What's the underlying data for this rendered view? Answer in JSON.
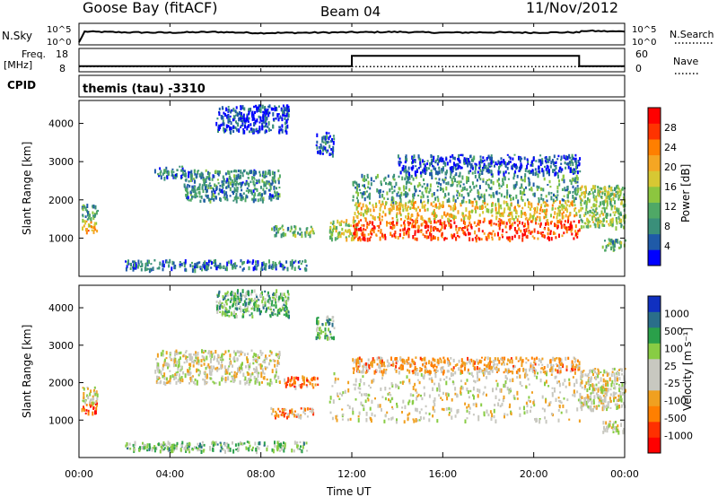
{
  "header": {
    "station": "Goose Bay (fitACF)",
    "beam": "Beam 04",
    "date": "11/Nov/2012"
  },
  "noise_panel": {
    "left_label": "N.Sky",
    "right_label": "N.Search",
    "left_ticks": [
      "10^5",
      "10^0"
    ],
    "right_ticks": [
      "10^5",
      "10^0"
    ]
  },
  "freq_panel": {
    "left_label_line1": "Freq.",
    "left_label_line2": "[MHz]",
    "right_label": "Nave",
    "left_ticks": [
      "18",
      "8"
    ],
    "right_ticks": [
      "60",
      "0"
    ]
  },
  "cpid": {
    "label": "CPID",
    "value": "themis (tau) -3310"
  },
  "x_axis": {
    "title": "Time UT",
    "tick_labels": [
      "00:00",
      "04:00",
      "08:00",
      "12:00",
      "16:00",
      "20:00",
      "00:00"
    ]
  },
  "chart_data": [
    {
      "type": "line",
      "panel": "noise",
      "series": [
        {
          "name": "N.Sky",
          "style": "solid",
          "x_hours": [
            0,
            0.25,
            2,
            4,
            6,
            8,
            10,
            12,
            14,
            16,
            18,
            20,
            22,
            22.2,
            24
          ],
          "y_log10": [
            0.2,
            3.2,
            3.0,
            2.9,
            3.1,
            2.8,
            2.9,
            3.0,
            3.1,
            2.9,
            3.0,
            2.9,
            3.0,
            3.4,
            3.2
          ]
        },
        {
          "name": "N.Search",
          "style": "dotted"
        }
      ]
    },
    {
      "type": "line",
      "panel": "frequency",
      "series": [
        {
          "name": "Freq.",
          "style": "solid",
          "x_hours": [
            0,
            12,
            12,
            22,
            22,
            24
          ],
          "y": [
            10.2,
            10.2,
            15.0,
            15.0,
            10.2,
            10.2
          ],
          "ylim": [
            8,
            18
          ]
        },
        {
          "name": "Nave",
          "style": "dotted",
          "x_hours": [
            0,
            24
          ],
          "y": [
            12,
            12
          ],
          "ylim": [
            0,
            60
          ]
        }
      ]
    },
    {
      "type": "heatmap",
      "panel": "power",
      "xlabel": "",
      "ylabel": "Slant Range [km]",
      "xlim_hours": [
        0,
        24
      ],
      "ylim_km": [
        0,
        4600
      ],
      "y_ticks": [
        1000,
        2000,
        3000,
        4000
      ],
      "colorbar": {
        "title": "Power [dB]",
        "tick_labels": [
          "4",
          "8",
          "12",
          "16",
          "20",
          "24",
          "28"
        ],
        "colors": [
          "#0000ff",
          "#1f5aa8",
          "#3a8f7a",
          "#4fa866",
          "#8cc63f",
          "#d7c833",
          "#f5a623",
          "#ff7f00",
          "#ff3300",
          "#ff0000"
        ]
      },
      "regions": [
        {
          "t0": 0.1,
          "t1": 0.8,
          "r0": 1200,
          "r1": 1500,
          "level": 0.65
        },
        {
          "t0": 0.1,
          "t1": 0.8,
          "r0": 1500,
          "r1": 1900,
          "level": 0.3
        },
        {
          "t0": 3.3,
          "t1": 4.6,
          "r0": 2600,
          "r1": 2900,
          "level": 0.2
        },
        {
          "t0": 4.6,
          "t1": 8.8,
          "r0": 2000,
          "r1": 2800,
          "level": 0.25
        },
        {
          "t0": 6.0,
          "t1": 9.2,
          "r0": 3800,
          "r1": 4500,
          "level": 0.1
        },
        {
          "t0": 8.4,
          "t1": 10.3,
          "r0": 1100,
          "r1": 1350,
          "level": 0.35
        },
        {
          "t0": 10.4,
          "t1": 11.2,
          "r0": 3200,
          "r1": 3800,
          "level": 0.15
        },
        {
          "t0": 11.0,
          "t1": 12.2,
          "r0": 1000,
          "r1": 1500,
          "level": 0.5
        },
        {
          "t0": 12.0,
          "t1": 22.0,
          "r0": 1000,
          "r1": 1500,
          "level": 0.85
        },
        {
          "t0": 12.0,
          "t1": 22.0,
          "r0": 1500,
          "r1": 2000,
          "level": 0.6
        },
        {
          "t0": 12.0,
          "t1": 22.0,
          "r0": 2000,
          "r1": 2700,
          "level": 0.3
        },
        {
          "t0": 14.0,
          "t1": 22.0,
          "r0": 2700,
          "r1": 3200,
          "level": 0.15
        },
        {
          "t0": 22.0,
          "t1": 24.0,
          "r0": 1300,
          "r1": 2400,
          "level": 0.45
        },
        {
          "t0": 23.0,
          "t1": 24.0,
          "r0": 700,
          "r1": 1000,
          "level": 0.35
        },
        {
          "t0": 2.0,
          "t1": 10.0,
          "r0": 200,
          "r1": 450,
          "level": 0.2
        }
      ]
    },
    {
      "type": "heatmap",
      "panel": "velocity",
      "xlabel": "Time UT",
      "ylabel": "Slant Range [km]",
      "xlim_hours": [
        0,
        24
      ],
      "ylim_km": [
        0,
        4600
      ],
      "y_ticks": [
        1000,
        2000,
        3000,
        4000
      ],
      "colorbar": {
        "title": "Velocity [m s⁻¹]",
        "tick_labels": [
          "1000",
          "500",
          "100",
          "25",
          "-25",
          "-100",
          "-500",
          "-1000"
        ],
        "colors": [
          "#1030c0",
          "#2a6e8a",
          "#2aa04a",
          "#88cc44",
          "#c8c8c0",
          "#c8c8c0",
          "#f0a020",
          "#ff7f00",
          "#ff3000",
          "#ff0000"
        ]
      },
      "regions": [
        {
          "t0": 0.1,
          "t1": 0.8,
          "r0": 1200,
          "r1": 1500,
          "level": 0.8
        },
        {
          "t0": 0.1,
          "t1": 0.8,
          "r0": 1500,
          "r1": 1900,
          "level": 0.5
        },
        {
          "t0": 3.3,
          "t1": 8.8,
          "r0": 2000,
          "r1": 2900,
          "level": 0.5
        },
        {
          "t0": 6.0,
          "t1": 9.2,
          "r0": 3800,
          "r1": 4500,
          "level": 0.3
        },
        {
          "t0": 8.4,
          "t1": 10.3,
          "r0": 1100,
          "r1": 1350,
          "level": 0.7
        },
        {
          "t0": 9.0,
          "t1": 10.5,
          "r0": 1900,
          "r1": 2200,
          "level": 0.75
        },
        {
          "t0": 10.4,
          "t1": 11.2,
          "r0": 3200,
          "r1": 3800,
          "level": 0.3
        },
        {
          "t0": 11.0,
          "t1": 22.0,
          "r0": 1000,
          "r1": 2300,
          "level": 0.5
        },
        {
          "t0": 12.0,
          "t1": 22.0,
          "r0": 2300,
          "r1": 2700,
          "level": 0.65
        },
        {
          "t0": 22.0,
          "t1": 24.0,
          "r0": 1300,
          "r1": 2400,
          "level": 0.5
        },
        {
          "t0": 23.0,
          "t1": 24.0,
          "r0": 700,
          "r1": 1000,
          "level": 0.5
        },
        {
          "t0": 2.0,
          "t1": 10.0,
          "r0": 200,
          "r1": 450,
          "level": 0.35
        }
      ]
    }
  ]
}
